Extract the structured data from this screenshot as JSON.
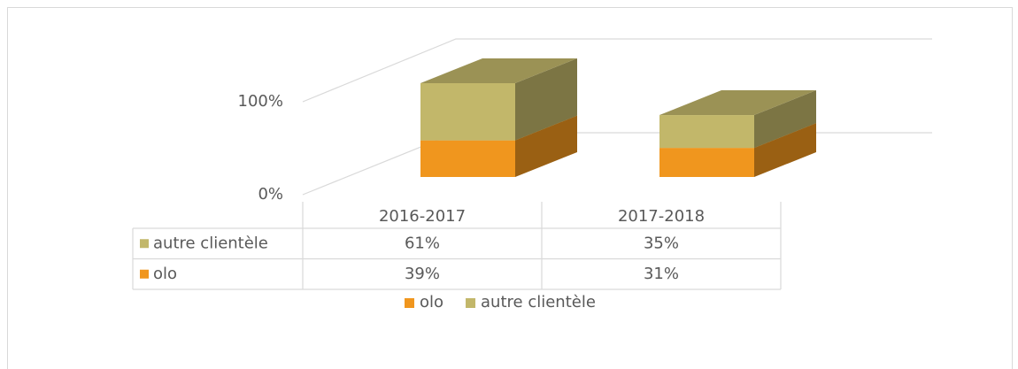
{
  "chart_data": {
    "type": "bar3d_stacked",
    "categories": [
      "2016-2017",
      "2017-2018"
    ],
    "series": [
      {
        "name": "olo",
        "color": "#f0961e",
        "values": [
          39,
          31
        ],
        "value_labels": [
          "39%",
          "31%"
        ]
      },
      {
        "name": "autre clientèle",
        "color": "#c2b76a",
        "values": [
          61,
          35
        ],
        "value_labels": [
          "61%",
          "35%"
        ]
      }
    ],
    "ylim": [
      0,
      100
    ],
    "yticks": [
      {
        "value": 0,
        "label": "0%"
      },
      {
        "value": 100,
        "label": "100%"
      }
    ],
    "grid": true,
    "legend": "bottom",
    "data_table": true
  }
}
